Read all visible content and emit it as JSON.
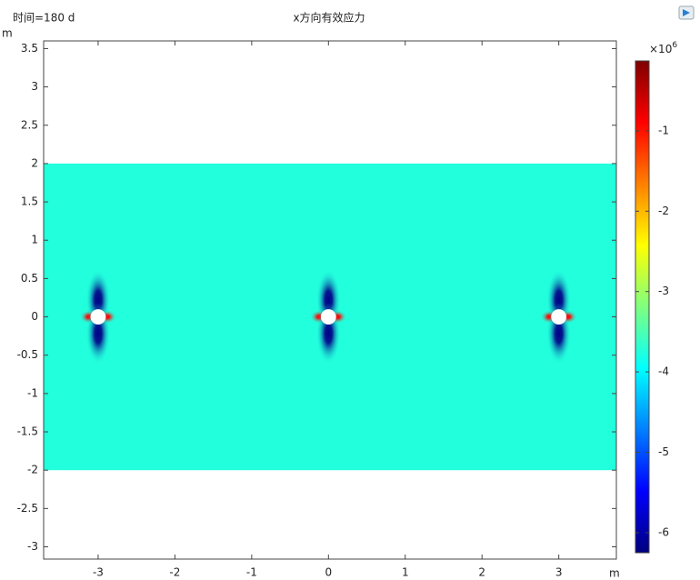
{
  "chart_data": {
    "type": "surface",
    "title": "x方向有效应力",
    "subtitle": "时间=180 d",
    "x_label": "m",
    "y_label": "m",
    "xlim": [
      -3.71,
      3.75
    ],
    "ylim": [
      -3.16,
      3.6
    ],
    "xticks": [
      -3,
      -2,
      -1,
      0,
      1,
      2,
      3
    ],
    "yticks": [
      -3,
      -2.5,
      -2,
      -1.5,
      -1,
      -0.5,
      0,
      0.5,
      1,
      1.5,
      2,
      2.5,
      3,
      3.5
    ],
    "domain": {
      "x": [
        -3.71,
        3.75
      ],
      "y": [
        -2,
        2
      ],
      "value": -3.75
    },
    "holes": {
      "x": [
        -3,
        0,
        3
      ],
      "y": [
        0,
        0,
        0
      ],
      "radius": 0.1,
      "min": [
        -6.2,
        -6.2,
        -6.2
      ],
      "max": [
        -0.9,
        -0.9,
        -0.9
      ]
    },
    "colorbar": {
      "label": "×10",
      "exponent": "6",
      "lim": [
        -6.25,
        -0.13
      ],
      "ticks": [
        -1,
        -2,
        -3,
        -4,
        -5,
        -6
      ],
      "colormap": [
        "#00007f",
        "#0000ff",
        "#007fff",
        "#00ffff",
        "#7fff7f",
        "#ffff00",
        "#ff7f00",
        "#ff0000",
        "#7f0000"
      ]
    }
  }
}
